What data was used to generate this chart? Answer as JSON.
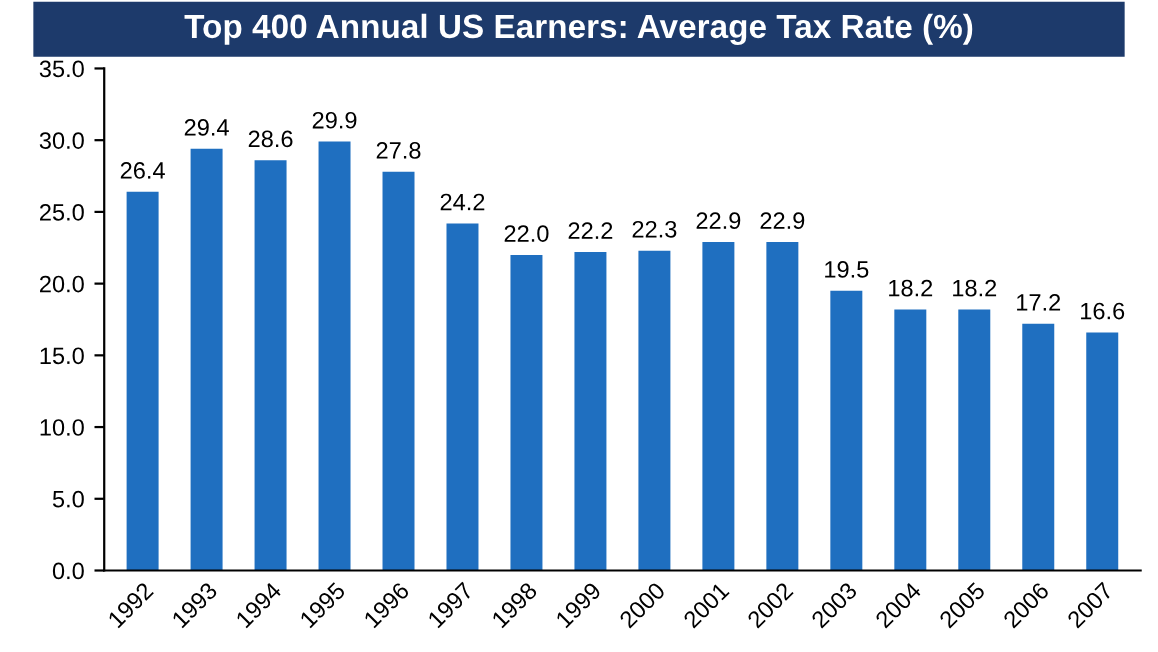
{
  "chart_data": {
    "type": "bar",
    "title": "Top 400 Annual US Earners: Average Tax Rate (%)",
    "categories": [
      "1992",
      "1993",
      "1994",
      "1995",
      "1996",
      "1997",
      "1998",
      "1999",
      "2000",
      "2001",
      "2002",
      "2003",
      "2004",
      "2005",
      "2006",
      "2007"
    ],
    "values": [
      26.4,
      29.4,
      28.6,
      29.9,
      27.8,
      24.2,
      22.0,
      22.2,
      22.3,
      22.9,
      22.9,
      19.5,
      18.2,
      18.2,
      17.2,
      16.6
    ],
    "color": "#1f6fc0",
    "ylim": [
      0,
      35
    ],
    "yticks": [
      {
        "value": 0,
        "label": "0.0"
      },
      {
        "value": 5,
        "label": "5.0"
      },
      {
        "value": 10,
        "label": "10.0"
      },
      {
        "value": 15,
        "label": "15.0"
      },
      {
        "value": 20,
        "label": "20.0"
      },
      {
        "value": 25,
        "label": "25.0"
      },
      {
        "value": 30,
        "label": "30.0"
      },
      {
        "value": 35,
        "label": "35.0"
      }
    ],
    "value_labels": [
      "26.4",
      "29.4",
      "28.6",
      "29.9",
      "27.8",
      "24.2",
      "22.0",
      "22.2",
      "22.3",
      "22.9",
      "22.9",
      "19.5",
      "18.2",
      "18.2",
      "17.2",
      "16.6"
    ],
    "grid": false
  }
}
